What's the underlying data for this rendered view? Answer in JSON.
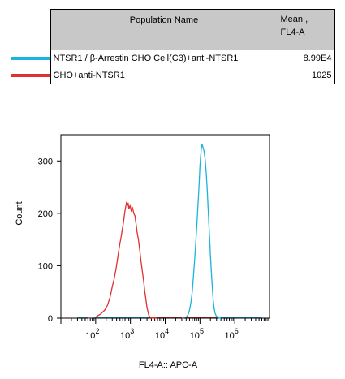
{
  "legend": {
    "header_name": "Population Name",
    "header_mean_line1": "Mean ,",
    "header_mean_line2": "FL4-A",
    "rows": [
      {
        "name": "NTSR1 / β-Arrestin CHO Cell(C3)+anti-NTSR1",
        "mean": "8.99E4",
        "color": "#1ab4dc"
      },
      {
        "name": "CHO+anti-NTSR1",
        "mean": "1025",
        "color": "#e03030"
      }
    ]
  },
  "chart_data": {
    "type": "line",
    "title": "",
    "xlabel": "FL4-A:: APC-A",
    "ylabel": "Count",
    "x_scale": "log",
    "xlim": [
      10,
      10000000
    ],
    "ylim": [
      0,
      350
    ],
    "x_ticks": [
      {
        "base": "10",
        "exp": "2",
        "value": 100
      },
      {
        "base": "10",
        "exp": "3",
        "value": 1000
      },
      {
        "base": "10",
        "exp": "4",
        "value": 10000
      },
      {
        "base": "10",
        "exp": "5",
        "value": 100000
      },
      {
        "base": "10",
        "exp": "6",
        "value": 1000000
      }
    ],
    "y_ticks": [
      "0",
      "100",
      "200",
      "300"
    ],
    "y_tick_values": [
      0,
      100,
      200,
      300
    ],
    "series": [
      {
        "name": "CHO+anti-NTSR1",
        "color": "#e03030",
        "x": [
          60,
          100,
          140,
          180,
          220,
          260,
          300,
          340,
          380,
          420,
          460,
          500,
          540,
          580,
          620,
          660,
          700,
          740,
          780,
          820,
          860,
          900,
          940,
          980,
          1050,
          1150,
          1250,
          1350,
          1450,
          1550,
          1700,
          1850,
          2000,
          2200,
          2400,
          2600,
          2800,
          3000,
          3200,
          3400,
          3600,
          3800,
          4000,
          4500,
          6000
        ],
        "y": [
          0,
          2,
          8,
          15,
          25,
          40,
          60,
          75,
          92,
          110,
          128,
          143,
          155,
          168,
          180,
          192,
          205,
          215,
          222,
          215,
          220,
          208,
          212,
          215,
          205,
          210,
          200,
          195,
          180,
          165,
          150,
          130,
          110,
          90,
          70,
          50,
          35,
          20,
          12,
          5,
          3,
          1,
          0,
          0,
          0
        ]
      },
      {
        "name": "NTSR1 / β-Arrestin CHO Cell(C3)+anti-NTSR1",
        "color": "#1ab4dc",
        "x": [
          30000,
          40000,
          45000,
          50000,
          55000,
          60000,
          65000,
          70000,
          75000,
          80000,
          85000,
          90000,
          95000,
          100000,
          105000,
          110000,
          115000,
          120000,
          130000,
          140000,
          150000,
          160000,
          170000,
          180000,
          190000,
          200000,
          210000,
          220000,
          230000,
          240000,
          255000,
          270000,
          290000,
          320000,
          350000,
          400000
        ],
        "y": [
          0,
          2,
          6,
          15,
          30,
          50,
          80,
          110,
          140,
          170,
          200,
          230,
          260,
          290,
          310,
          325,
          332,
          328,
          320,
          305,
          280,
          250,
          215,
          180,
          150,
          120,
          95,
          72,
          52,
          35,
          20,
          10,
          5,
          2,
          0,
          0
        ]
      }
    ],
    "grid": false,
    "legend_placement": "top (table)"
  }
}
